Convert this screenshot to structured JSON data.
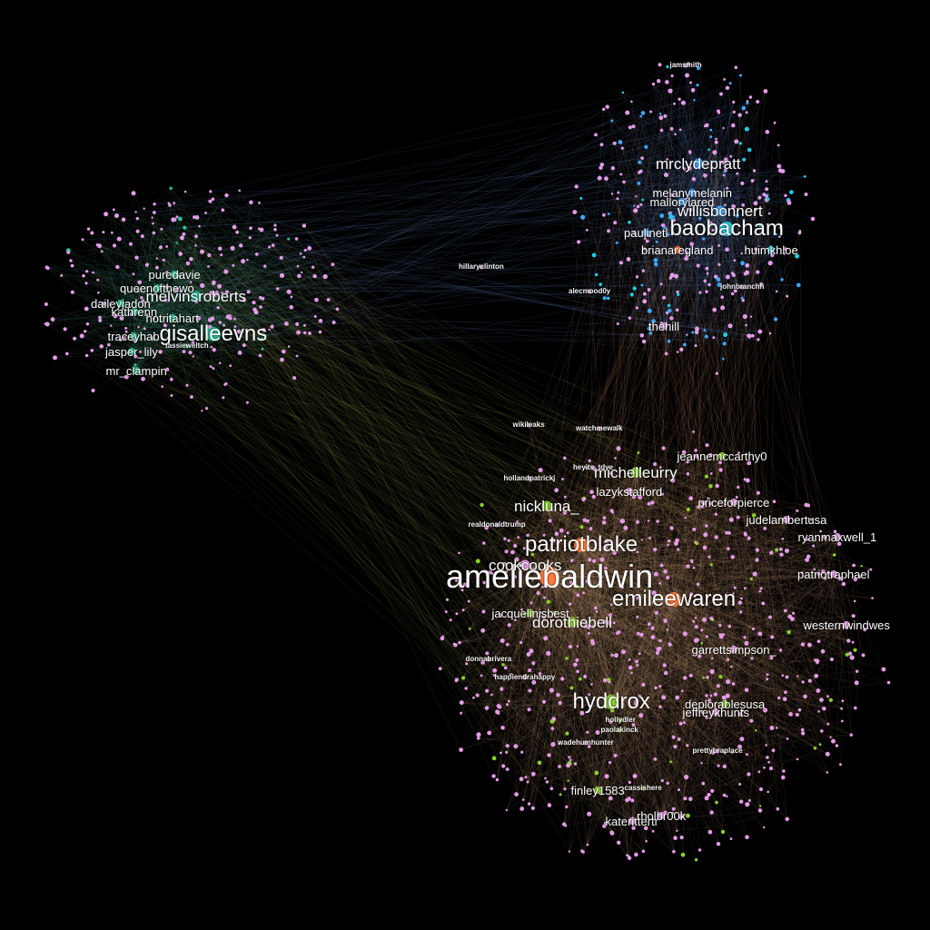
{
  "graph": {
    "background": "#000000",
    "edge_colors": {
      "blue": "#6e9be8",
      "peach": "#e8b08a",
      "olive": "#b8c25a",
      "teal": "#4fb897",
      "orange": "#e3764a"
    },
    "node_colors": {
      "default": "#e49be6",
      "blue": "#3ea8ff",
      "cyan": "#1ecfe0",
      "orange": "#ff7a3c",
      "green": "#88d02c",
      "teal": "#28c29a"
    },
    "clusters": [
      {
        "id": "west",
        "color": "teal"
      },
      {
        "id": "north",
        "color": "blue"
      },
      {
        "id": "south",
        "color": "peach"
      }
    ],
    "nodes": [
      {
        "label": "ameliebaldwin",
        "cluster": "south",
        "color": "orange",
        "size": 5
      },
      {
        "label": "patriotblake",
        "cluster": "south",
        "color": "orange",
        "size": 4
      },
      {
        "label": "emileewaren",
        "cluster": "south",
        "color": "orange",
        "size": 4
      },
      {
        "label": "hyddrox",
        "cluster": "south",
        "color": "green",
        "size": 4
      },
      {
        "label": "cookcooks",
        "cluster": "south",
        "color": "default",
        "size": 3
      },
      {
        "label": "dorothiebell",
        "cluster": "south",
        "color": "green",
        "size": 3
      },
      {
        "label": "jacquelinisbest",
        "cluster": "south",
        "color": "green",
        "size": 2
      },
      {
        "label": "nickluna_",
        "cluster": "south",
        "color": "green",
        "size": 3
      },
      {
        "label": "michelleurry",
        "cluster": "south",
        "color": "green",
        "size": 3
      },
      {
        "label": "lazykstafford",
        "cluster": "south",
        "color": "default",
        "size": 2
      },
      {
        "label": "jeannemccarthy0",
        "cluster": "south",
        "color": "green",
        "size": 2
      },
      {
        "label": "priceforpierce",
        "cluster": "south",
        "color": "default",
        "size": 2
      },
      {
        "label": "judelambertusa",
        "cluster": "south",
        "color": "default",
        "size": 2
      },
      {
        "label": "ryanmaxwell_1",
        "cluster": "south",
        "color": "default",
        "size": 2
      },
      {
        "label": "patriotraphael",
        "cluster": "south",
        "color": "default",
        "size": 2
      },
      {
        "label": "westernwindwes",
        "cluster": "south",
        "color": "default",
        "size": 2
      },
      {
        "label": "garrettsimpson_",
        "cluster": "south",
        "color": "default",
        "size": 2
      },
      {
        "label": "deplorablesusa",
        "cluster": "south",
        "color": "green",
        "size": 2
      },
      {
        "label": "jeffreykhunts",
        "cluster": "south",
        "color": "default",
        "size": 2
      },
      {
        "label": "wikileaks",
        "cluster": "south",
        "color": "default",
        "size": 1
      },
      {
        "label": "watchmewalk",
        "cluster": "south",
        "color": "default",
        "size": 1
      },
      {
        "label": "realdonaldtrump",
        "cluster": "south",
        "color": "default",
        "size": 1
      },
      {
        "label": "hollandpatrickj",
        "cluster": "south",
        "color": "default",
        "size": 1
      },
      {
        "label": "heyits_tdye",
        "cluster": "south",
        "color": "default",
        "size": 1
      },
      {
        "label": "paolakinck",
        "cluster": "south",
        "color": "green",
        "size": 1
      },
      {
        "label": "hollydler",
        "cluster": "south",
        "color": "green",
        "size": 1
      },
      {
        "label": "finley1583",
        "cluster": "south",
        "color": "green",
        "size": 2
      },
      {
        "label": "katerittertr",
        "cluster": "south",
        "color": "default",
        "size": 2
      },
      {
        "label": "rholbr00k",
        "cluster": "south",
        "color": "default",
        "size": 2
      },
      {
        "label": "cassishere",
        "cluster": "south",
        "color": "green",
        "size": 1
      },
      {
        "label": "prettybraplace",
        "cluster": "south",
        "color": "default",
        "size": 1
      },
      {
        "label": "wadehumhunter",
        "cluster": "south",
        "color": "default",
        "size": 1
      },
      {
        "label": "donnabrivera",
        "cluster": "south",
        "color": "default",
        "size": 1
      },
      {
        "label": "happiendrahappy",
        "cluster": "south",
        "color": "default",
        "size": 1
      },
      {
        "label": "mrclydepratt",
        "cluster": "north",
        "color": "blue",
        "size": 3
      },
      {
        "label": "baobacham",
        "cluster": "north",
        "color": "cyan",
        "size": 4
      },
      {
        "label": "willisbonnert",
        "cluster": "north",
        "color": "blue",
        "size": 3
      },
      {
        "label": "melanymelanin",
        "cluster": "north",
        "color": "blue",
        "size": 2
      },
      {
        "label": "mallorylared",
        "cluster": "north",
        "color": "blue",
        "size": 2
      },
      {
        "label": "brianaregland",
        "cluster": "north",
        "color": "orange",
        "size": 2
      },
      {
        "label": "huimkhloe",
        "cluster": "north",
        "color": "cyan",
        "size": 2
      },
      {
        "label": "paulinetl",
        "cluster": "north",
        "color": "blue",
        "size": 2
      },
      {
        "label": "thehill",
        "cluster": "north",
        "color": "default",
        "size": 2
      },
      {
        "label": "johnbranchh",
        "cluster": "north",
        "color": "default",
        "size": 1
      },
      {
        "label": "hillaryclinton",
        "cluster": "north",
        "color": "default",
        "size": 1
      },
      {
        "label": "jamsmith",
        "cluster": "north",
        "color": "default",
        "size": 1
      },
      {
        "label": "alecmood0y",
        "cluster": "north",
        "color": "default",
        "size": 1
      },
      {
        "label": "gisalleevns",
        "cluster": "west",
        "color": "teal",
        "size": 4
      },
      {
        "label": "melvinsroberts",
        "cluster": "west",
        "color": "teal",
        "size": 3
      },
      {
        "label": "queenofthewo",
        "cluster": "west",
        "color": "teal",
        "size": 2
      },
      {
        "label": "puredavie",
        "cluster": "west",
        "color": "teal",
        "size": 2
      },
      {
        "label": "daileyjadon",
        "cluster": "west",
        "color": "teal",
        "size": 2
      },
      {
        "label": "kathrenn",
        "cluster": "west",
        "color": "teal",
        "size": 2
      },
      {
        "label": "hotritahart",
        "cluster": "west",
        "color": "teal",
        "size": 2
      },
      {
        "label": "traceyhab",
        "cluster": "west",
        "color": "teal",
        "size": 2
      },
      {
        "label": "jasper_lily",
        "cluster": "west",
        "color": "teal",
        "size": 2
      },
      {
        "label": "mr_clampin",
        "cluster": "west",
        "color": "teal",
        "size": 2
      },
      {
        "label": "tassieweltch",
        "cluster": "west",
        "color": "teal",
        "size": 1
      }
    ]
  }
}
